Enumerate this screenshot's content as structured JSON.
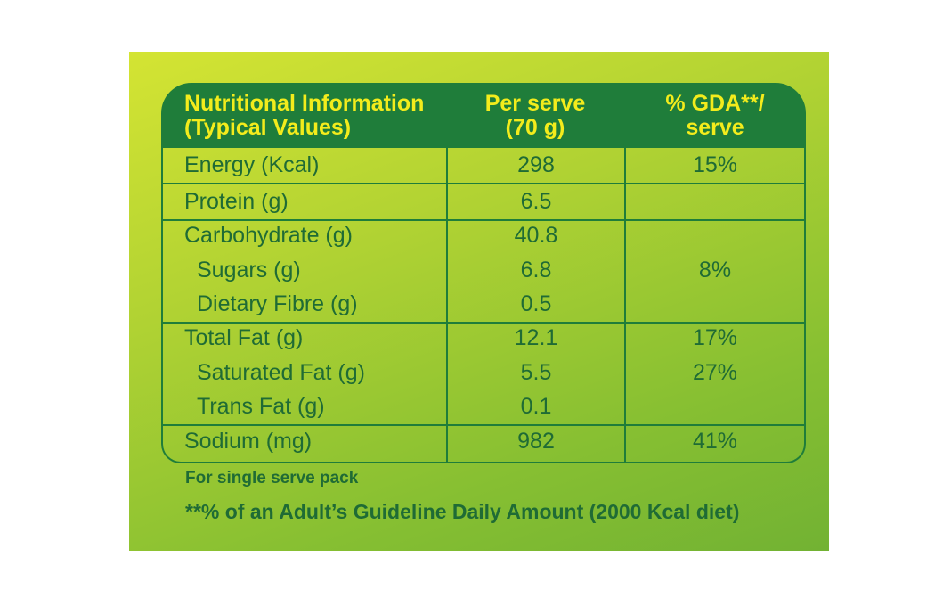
{
  "colors": {
    "header_bg": "#1f7d3a",
    "header_text": "#f3ec1c",
    "body_text": "#1f6b35",
    "panel_green_light": "#d4e433",
    "panel_green_dark": "#72b233"
  },
  "header": {
    "col1_line1": "Nutritional Information",
    "col1_line2": "(Typical Values)",
    "col2_line1": "Per serve",
    "col2_line2": "(70 g)",
    "col3_line1": "% GDA**/",
    "col3_line2": "serve"
  },
  "rows": [
    {
      "name": "Energy (Kcal)",
      "value": "298",
      "gda": "15%"
    },
    {
      "name": "Protein (g)",
      "value": "6.5",
      "gda": ""
    },
    {
      "name": "Carbohydrate (g)",
      "value": "40.8",
      "gda": ""
    },
    {
      "name": "Sugars (g)",
      "value": "6.8",
      "gda": "8%"
    },
    {
      "name": "Dietary Fibre (g)",
      "value": "0.5",
      "gda": ""
    },
    {
      "name": "Total Fat (g)",
      "value": "12.1",
      "gda": "17%"
    },
    {
      "name": "Saturated Fat (g)",
      "value": "5.5",
      "gda": "27%"
    },
    {
      "name": "Trans Fat (g)",
      "value": "0.1",
      "gda": ""
    },
    {
      "name": "Sodium (mg)",
      "value": "982",
      "gda": "41%"
    }
  ],
  "footnotes": {
    "serve_note": "For single serve pack",
    "gda_note": "**% of an Adult’s Guideline Daily Amount (2000 Kcal diet)"
  }
}
